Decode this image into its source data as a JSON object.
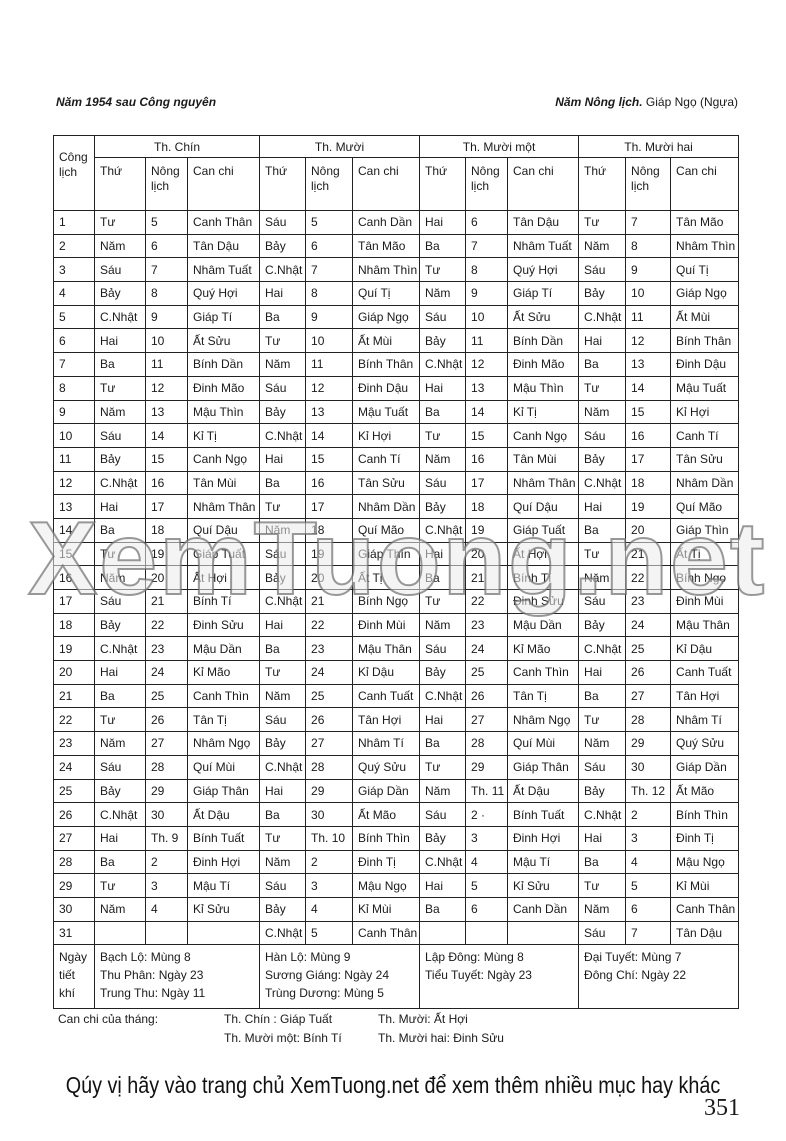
{
  "header": {
    "left": "Năm 1954 sau Công nguyên",
    "right_label": "Năm Nông lịch.",
    "right_value": "Giáp Ngọ (Ngựa)"
  },
  "table": {
    "first_col_header": "Công lịch",
    "sub_headers": [
      "Thứ",
      "Nông lịch",
      "Can chi"
    ],
    "months": [
      "Th. Chín",
      "Th. Mười",
      "Th. Mười một",
      "Th. Mười hai"
    ],
    "rows": [
      [
        "1",
        "Tư",
        "5",
        "Canh Thân",
        "Sáu",
        "5",
        "Canh Dần",
        "Hai",
        "6",
        "Tân Dậu",
        "Tư",
        "7",
        "Tân Mão"
      ],
      [
        "2",
        "Năm",
        "6",
        "Tân Dậu",
        "Bảy",
        "6",
        "Tân Mão",
        "Ba",
        "7",
        "Nhâm Tuất",
        "Năm",
        "8",
        "Nhâm Thìn"
      ],
      [
        "3",
        "Sáu",
        "7",
        "Nhâm Tuất",
        "C.Nhật",
        "7",
        "Nhâm Thìn",
        "Tư",
        "8",
        "Quý Hợi",
        "Sáu",
        "9",
        "Quí Tị"
      ],
      [
        "4",
        "Bảy",
        "8",
        "Quý Hợi",
        "Hai",
        "8",
        "Quí Tị",
        "Năm",
        "9",
        "Giáp Tí",
        "Bảy",
        "10",
        "Giáp Ngọ"
      ],
      [
        "5",
        "C.Nhật",
        "9",
        "Giáp Tí",
        "Ba",
        "9",
        "Giáp Ngọ",
        "Sáu",
        "10",
        "Ất Sửu",
        "C.Nhật",
        "11",
        "Ất Mùi"
      ],
      [
        "6",
        "Hai",
        "10",
        "Ất Sửu",
        "Tư",
        "10",
        "Ất Mùi",
        "Bảy",
        "11",
        "Bính Dần",
        "Hai",
        "12",
        "Bính Thân"
      ],
      [
        "7",
        "Ba",
        "11",
        "Bính Dần",
        "Năm",
        "11",
        "Bính Thân",
        "C.Nhật",
        "12",
        "Đinh Mão",
        "Ba",
        "13",
        "Đinh Dậu"
      ],
      [
        "8",
        "Tư",
        "12",
        "Đinh Mão",
        "Sáu",
        "12",
        "Đinh Dậu",
        "Hai",
        "13",
        "Mậu Thìn",
        "Tư",
        "14",
        "Mậu Tuất"
      ],
      [
        "9",
        "Năm",
        "13",
        "Mậu Thìn",
        "Bảy",
        "13",
        "Mậu Tuất",
        "Ba",
        "14",
        "Kỉ Tị",
        "Năm",
        "15",
        "Kỉ Hợi"
      ],
      [
        "10",
        "Sáu",
        "14",
        "Kỉ Tị",
        "C.Nhật",
        "14",
        "Kỉ Hợi",
        "Tư",
        "15",
        "Canh Ngọ",
        "Sáu",
        "16",
        "Canh Tí"
      ],
      [
        "11",
        "Bảy",
        "15",
        "Canh Ngọ",
        "Hai",
        "15",
        "Canh Tí",
        "Năm",
        "16",
        "Tân Mùi",
        "Bảy",
        "17",
        "Tân Sửu"
      ],
      [
        "12",
        "C.Nhật",
        "16",
        "Tân Mùi",
        "Ba",
        "16",
        "Tân Sửu",
        "Sáu",
        "17",
        "Nhâm Thân",
        "C.Nhật",
        "18",
        "Nhâm Dần"
      ],
      [
        "13",
        "Hai",
        "17",
        "Nhâm Thân",
        "Tư",
        "17",
        "Nhâm Dần",
        "Bảy",
        "18",
        "Quí Dậu",
        "Hai",
        "19",
        "Quí Mão"
      ],
      [
        "14",
        "Ba",
        "18",
        "Quí Dậu",
        "Năm",
        "18",
        "Quí Mão",
        "C.Nhật",
        "19",
        "Giáp Tuất",
        "Ba",
        "20",
        "Giáp Thìn"
      ],
      [
        "15",
        "Tư",
        "19",
        "Giáp Tuất",
        "Sáu",
        "19",
        "Giáp Thìn",
        "Hai",
        "20",
        "Ất Hợi",
        "Tư",
        "21",
        "Ất Tị"
      ],
      [
        "16",
        "Năm",
        "20",
        "Ất Hợi",
        "Bảy",
        "20",
        "Ất Tị",
        "Ba",
        "21",
        "Bính Tí",
        "Năm",
        "22",
        "Bính Ngọ"
      ],
      [
        "17",
        "Sáu",
        "21",
        "Bính Tí",
        "C.Nhật",
        "21",
        "Bính Ngọ",
        "Tư",
        "22",
        "Đinh Sửu",
        "Sáu",
        "23",
        "Đinh Mùi"
      ],
      [
        "18",
        "Bảy",
        "22",
        "Đinh Sửu",
        "Hai",
        "22",
        "Đinh Mùi",
        "Năm",
        "23",
        "Mậu Dần",
        "Bảy",
        "24",
        "Mậu Thân"
      ],
      [
        "19",
        "C.Nhật",
        "23",
        "Mậu Dần",
        "Ba",
        "23",
        "Mậu Thân",
        "Sáu",
        "24",
        "Kỉ Mão",
        "C.Nhật",
        "25",
        "Kỉ Dậu"
      ],
      [
        "20",
        "Hai",
        "24",
        "Kỉ Mão",
        "Tư",
        "24",
        "Kỉ Dậu",
        "Bảy",
        "25",
        "Canh Thìn",
        "Hai",
        "26",
        "Canh Tuất"
      ],
      [
        "21",
        "Ba",
        "25",
        "Canh Thìn",
        "Năm",
        "25",
        "Canh Tuất",
        "C.Nhật",
        "26",
        "Tân Tị",
        "Ba",
        "27",
        "Tân Hợi"
      ],
      [
        "22",
        "Tư",
        "26",
        "Tân Tị",
        "Sáu",
        "26",
        "Tân Hợi",
        "Hai",
        "27",
        "Nhâm Ngọ",
        "Tư",
        "28",
        "Nhâm Tí"
      ],
      [
        "23",
        "Năm",
        "27",
        "Nhâm Ngọ",
        "Bảy",
        "27",
        "Nhâm Tí",
        "Ba",
        "28",
        "Quí Mùi",
        "Năm",
        "29",
        "Quý Sửu"
      ],
      [
        "24",
        "Sáu",
        "28",
        "Quí Mùi",
        "C.Nhật",
        "28",
        "Quý Sửu",
        "Tư",
        "29",
        "Giáp Thân",
        "Sáu",
        "30",
        "Giáp Dần"
      ],
      [
        "25",
        "Bảy",
        "29",
        "Giáp Thân",
        "Hai",
        "29",
        "Giáp Dần",
        "Năm",
        "Th. 11",
        "Ất Dậu",
        "Bảy",
        "Th. 12",
        "Ất Mão"
      ],
      [
        "26",
        "C.Nhật",
        "30",
        "Ất Dậu",
        "Ba",
        "30",
        "Ất Mão",
        "Sáu",
        "2 ·",
        "Bính Tuất",
        "C.Nhật",
        "2",
        "Bính Thìn"
      ],
      [
        "27",
        "Hai",
        "Th. 9",
        "Bính Tuất",
        "Tư",
        "Th. 10",
        "Bính Thìn",
        "Bảy",
        "3",
        "Đinh Hợi",
        "Hai",
        "3",
        "Đinh Tị"
      ],
      [
        "28",
        "Ba",
        "2",
        "Đinh Hợi",
        "Năm",
        "2",
        "Đinh Tị",
        "C.Nhật",
        "4",
        "Mậu Tí",
        "Ba",
        "4",
        "Mậu Ngọ"
      ],
      [
        "29",
        "Tư",
        "3",
        "Mậu Tí",
        "Sáu",
        "3",
        "Mậu Ngọ",
        "Hai",
        "5",
        "Kỉ Sửu",
        "Tư",
        "5",
        "Kỉ Mùi"
      ],
      [
        "30",
        "Năm",
        "4",
        "Kỉ Sửu",
        "Bảy",
        "4",
        "Kỉ Mùi",
        "Ba",
        "6",
        "Canh Dần",
        "Năm",
        "6",
        "Canh Thân"
      ],
      [
        "31",
        "",
        "",
        "",
        "C.Nhật",
        "5",
        "Canh Thân",
        "",
        "",
        "",
        "Sáu",
        "7",
        "Tân Dậu"
      ]
    ],
    "footer": {
      "label": "Ngày tiết khí",
      "months": [
        [
          "Bạch Lộ: Mùng 8",
          "Thu Phân: Ngày 23",
          "Trung Thu: Ngày 11"
        ],
        [
          "Hàn Lộ: Mùng 9",
          "Sương Giáng: Ngày 24",
          "Trùng Dương: Mùng 5"
        ],
        [
          "Lập Đông: Mùng 8",
          "Tiểu Tuyết: Ngày 23"
        ],
        [
          "Đại Tuyết: Mùng 7",
          "Đông Chí: Ngày 22"
        ]
      ]
    }
  },
  "month_canchi": {
    "label": "Can chi của tháng:",
    "items": [
      "Th. Chín : Giáp Tuất",
      "Th. Mười: Ất  Hợi",
      "Th. Mười một: Bính Tí",
      "Th. Mười hai: Đinh Sửu"
    ]
  },
  "watermark": "XemTuong.net",
  "banner": "Qúy vị hãy vào trang chủ XemTuong.net để xem thêm nhiều mục hay khác",
  "page_number": "351"
}
